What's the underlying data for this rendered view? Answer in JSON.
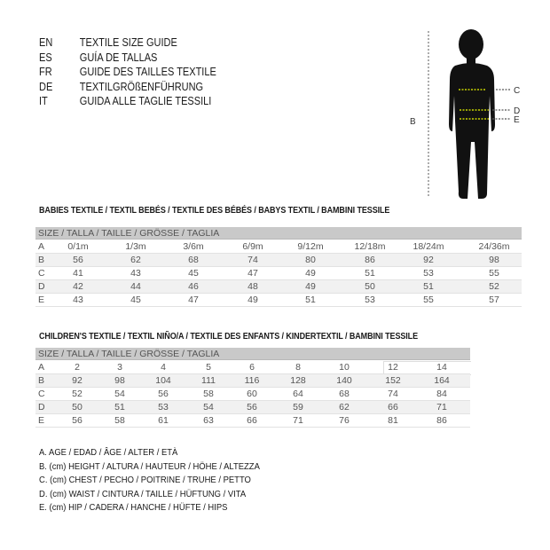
{
  "intro": [
    {
      "code": "EN",
      "text": "TEXTILE SIZE GUIDE"
    },
    {
      "code": "ES",
      "text": "GUÍA DE TALLAS"
    },
    {
      "code": "FR",
      "text": "GUIDE DES TAILLES TEXTILE"
    },
    {
      "code": "DE",
      "text": "TEXTILGRÖßENFÜHRUNG"
    },
    {
      "code": "IT",
      "text": "GUIDA ALLE TAGLIE TESSILI"
    }
  ],
  "figure": {
    "labels": {
      "B": "B",
      "C": "C",
      "D": "D",
      "E": "E"
    },
    "accent": "#c8d400"
  },
  "babies": {
    "title": "BABIES TEXTILE / TEXTIL BEBÉS / TEXTILE DES BÉBÉS / BABYS TEXTIL  / BAMBINI TESSILE",
    "header": "SIZE / TALLA / TAILLE / GRÖSSE / TAGLIA",
    "rows": [
      {
        "label": "A",
        "values": [
          "0/1m",
          "1/3m",
          "3/6m",
          "6/9m",
          "9/12m",
          "12/18m",
          "18/24m",
          "24/36m"
        ]
      },
      {
        "label": "B",
        "values": [
          "56",
          "62",
          "68",
          "74",
          "80",
          "86",
          "92",
          "98"
        ]
      },
      {
        "label": "C",
        "values": [
          "41",
          "43",
          "45",
          "47",
          "49",
          "51",
          "53",
          "55"
        ]
      },
      {
        "label": "D",
        "values": [
          "42",
          "44",
          "46",
          "48",
          "49",
          "50",
          "51",
          "52"
        ]
      },
      {
        "label": "E",
        "values": [
          "43",
          "45",
          "47",
          "49",
          "51",
          "53",
          "55",
          "57"
        ]
      }
    ]
  },
  "children": {
    "title": "CHILDREN'S TEXTILE / TEXTIL NIÑO/A / TEXTILE DES ENFANTS / KINDERTEXTIL / BAMBINI TESSILE",
    "header": "SIZE / TALLA / TAILLE / GRÖSSE / TAGLIA",
    "rows": [
      {
        "label": "A",
        "values": [
          "2",
          "3",
          "4",
          "5",
          "6",
          "8",
          "10",
          "12",
          "14"
        ]
      },
      {
        "label": "B",
        "values": [
          "92",
          "98",
          "104",
          "111",
          "116",
          "128",
          "140",
          "152",
          "164"
        ]
      },
      {
        "label": "C",
        "values": [
          "52",
          "54",
          "56",
          "58",
          "60",
          "64",
          "68",
          "74",
          "84"
        ]
      },
      {
        "label": "D",
        "values": [
          "50",
          "51",
          "53",
          "54",
          "56",
          "59",
          "62",
          "66",
          "71"
        ]
      },
      {
        "label": "E",
        "values": [
          "56",
          "58",
          "61",
          "63",
          "66",
          "71",
          "76",
          "81",
          "86"
        ]
      }
    ]
  },
  "legend": [
    "A. AGE / EDAD / ÂGE / ALTER / ETÀ",
    "B. (cm) HEIGHT / ALTURA / HAUTEUR / HÖHE / ALTEZZA",
    "C. (cm) CHEST / PECHO / POITRINE / TRUHE / PETTO",
    "D. (cm) WAIST / CINTURA / TAILLE / HÜFTUNG / VITA",
    "E. (cm) HIP / CADERA / HANCHE / HÜFTE / HIPS"
  ]
}
